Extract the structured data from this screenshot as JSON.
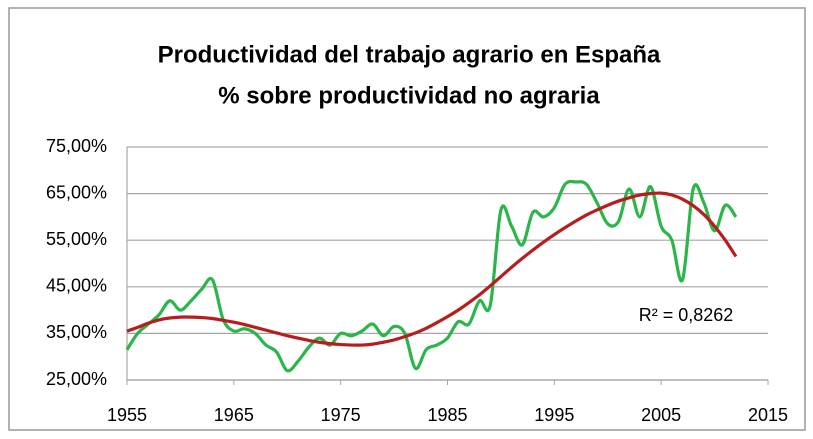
{
  "chart_data": {
    "type": "line",
    "title": "Productividad del trabajo agrario en España",
    "subtitle": "% sobre productividad no agraria",
    "annotation": "R² = 0,8262",
    "x": [
      1955,
      1956,
      1957,
      1958,
      1959,
      1960,
      1961,
      1962,
      1963,
      1964,
      1965,
      1966,
      1967,
      1968,
      1969,
      1970,
      1971,
      1972,
      1973,
      1974,
      1975,
      1976,
      1977,
      1978,
      1979,
      1980,
      1981,
      1982,
      1983,
      1984,
      1985,
      1986,
      1987,
      1988,
      1989,
      1990,
      1991,
      1992,
      1993,
      1994,
      1995,
      1996,
      1997,
      1998,
      1999,
      2000,
      2001,
      2002,
      2003,
      2004,
      2005,
      2006,
      2007,
      2008,
      2009,
      2010,
      2011,
      2012
    ],
    "series": [
      {
        "color": "#2ab64a",
        "values": [
          31.5,
          35,
          37,
          39,
          42,
          40,
          42,
          44.5,
          46.5,
          38,
          35.5,
          36,
          35,
          32.5,
          31,
          27,
          29,
          32,
          34,
          32.5,
          35,
          34.5,
          35.5,
          37,
          34.5,
          36.5,
          35,
          27.5,
          31.5,
          32.5,
          34,
          37.5,
          37,
          42,
          41,
          61.5,
          58,
          54,
          61,
          60,
          62,
          67,
          67.5,
          67,
          63,
          58.5,
          59,
          66,
          60,
          66.5,
          58,
          55,
          46.5,
          66,
          63,
          57,
          62.5,
          60
        ]
      },
      {
        "color": "#b81d1d",
        "values": [
          35.5,
          36.3,
          37.2,
          37.9,
          38.3,
          38.5,
          38.5,
          38.4,
          38.2,
          37.8,
          37.4,
          36.9,
          36.3,
          35.7,
          35.1,
          34.5,
          34,
          33.5,
          33.1,
          32.8,
          32.6,
          32.5,
          32.5,
          32.7,
          33.1,
          33.6,
          34.3,
          35.1,
          36.1,
          37.3,
          38.6,
          40,
          41.6,
          43.3,
          45.2,
          47.2,
          49.2,
          51.1,
          52.9,
          54.6,
          56.2,
          57.7,
          59.1,
          60.4,
          61.5,
          62.5,
          63.4,
          64.1,
          64.7,
          65,
          65.1,
          64.7,
          63.8,
          62.4,
          60.5,
          58,
          55,
          51.5
        ]
      }
    ],
    "xlim": [
      1955,
      2015
    ],
    "xticks": [
      1955,
      1965,
      1975,
      1985,
      1995,
      2005,
      2015
    ],
    "ylim": [
      25,
      75
    ],
    "yticks": [
      {
        "value": 25,
        "label": "25,00%"
      },
      {
        "value": 35,
        "label": "35,00%"
      },
      {
        "value": 45,
        "label": "45,00%"
      },
      {
        "value": 55,
        "label": "55,00%"
      },
      {
        "value": 65,
        "label": "65,00%"
      },
      {
        "value": 75,
        "label": "75,00%"
      }
    ],
    "grid": true
  }
}
